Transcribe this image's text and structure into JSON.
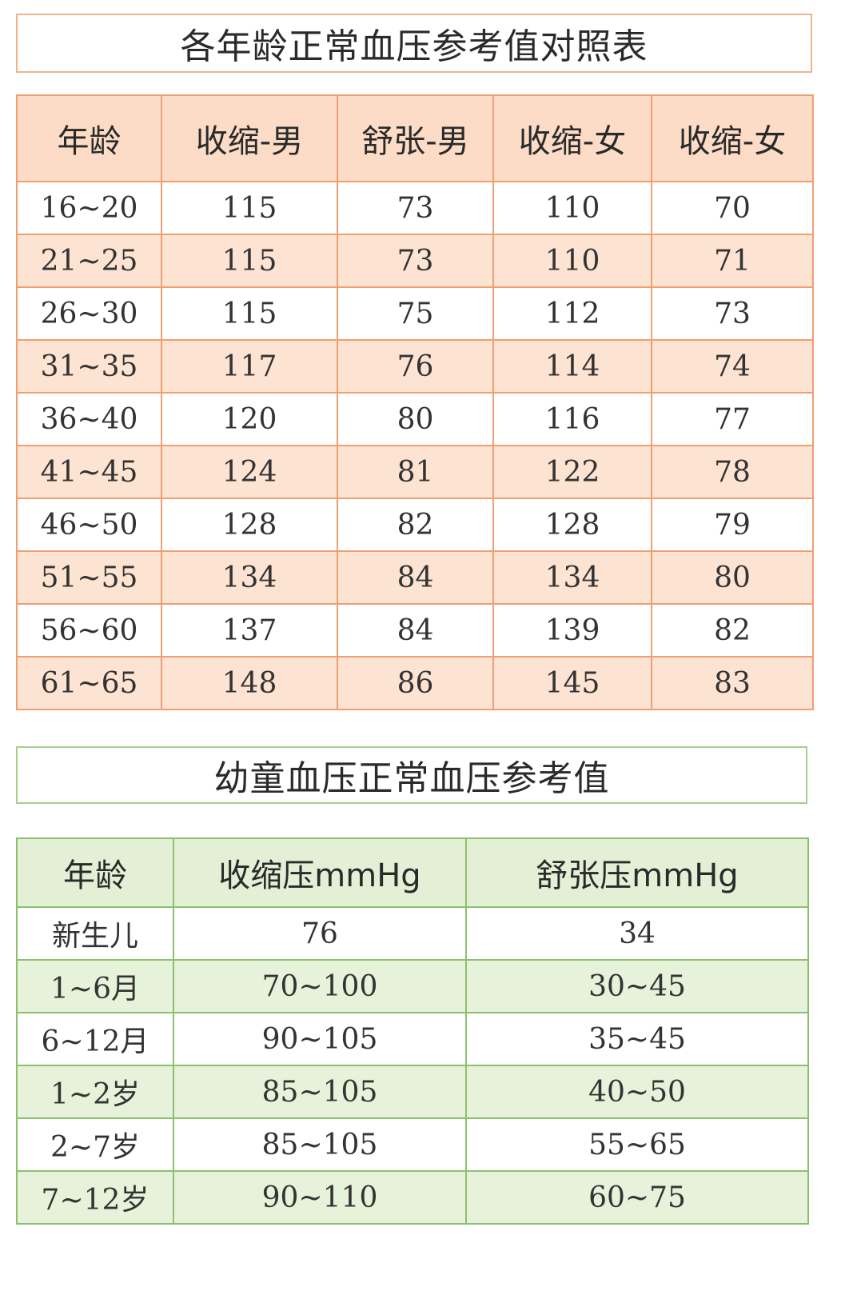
{
  "adult": {
    "title": "各年龄正常血压参考值对照表",
    "headers": [
      "年龄",
      "收缩-男",
      "舒张-男",
      "收缩-女",
      "收缩-女"
    ],
    "rows": [
      [
        "16~20",
        "115",
        "73",
        "110",
        "70"
      ],
      [
        "21~25",
        "115",
        "73",
        "110",
        "71"
      ],
      [
        "26~30",
        "115",
        "75",
        "112",
        "73"
      ],
      [
        "31~35",
        "117",
        "76",
        "114",
        "74"
      ],
      [
        "36~40",
        "120",
        "80",
        "116",
        "77"
      ],
      [
        "41~45",
        "124",
        "81",
        "122",
        "78"
      ],
      [
        "46~50",
        "128",
        "82",
        "128",
        "79"
      ],
      [
        "51~55",
        "134",
        "84",
        "134",
        "80"
      ],
      [
        "56~60",
        "137",
        "84",
        "139",
        "82"
      ],
      [
        "61~65",
        "148",
        "86",
        "145",
        "83"
      ]
    ],
    "border_color": "#ee9f74",
    "header_bg": "#fcdcc6",
    "stripe_bg": "#fde3d2"
  },
  "child": {
    "title": "幼童血压正常血压参考值",
    "headers": [
      "年龄",
      "收缩压mmHg",
      "舒张压mmHg"
    ],
    "rows": [
      [
        "新生儿",
        "76",
        "34"
      ],
      [
        "1~6月",
        "70~100",
        "30~45"
      ],
      [
        "6~12月",
        "90~105",
        "35~45"
      ],
      [
        "1~2岁",
        "85~105",
        "40~50"
      ],
      [
        "2~7岁",
        "85~105",
        "55~65"
      ],
      [
        "7~12岁",
        "90~110",
        "60~75"
      ]
    ],
    "border_color": "#8cc06e",
    "header_bg": "#e3f0d6",
    "stripe_bg": "#e6f2da"
  }
}
